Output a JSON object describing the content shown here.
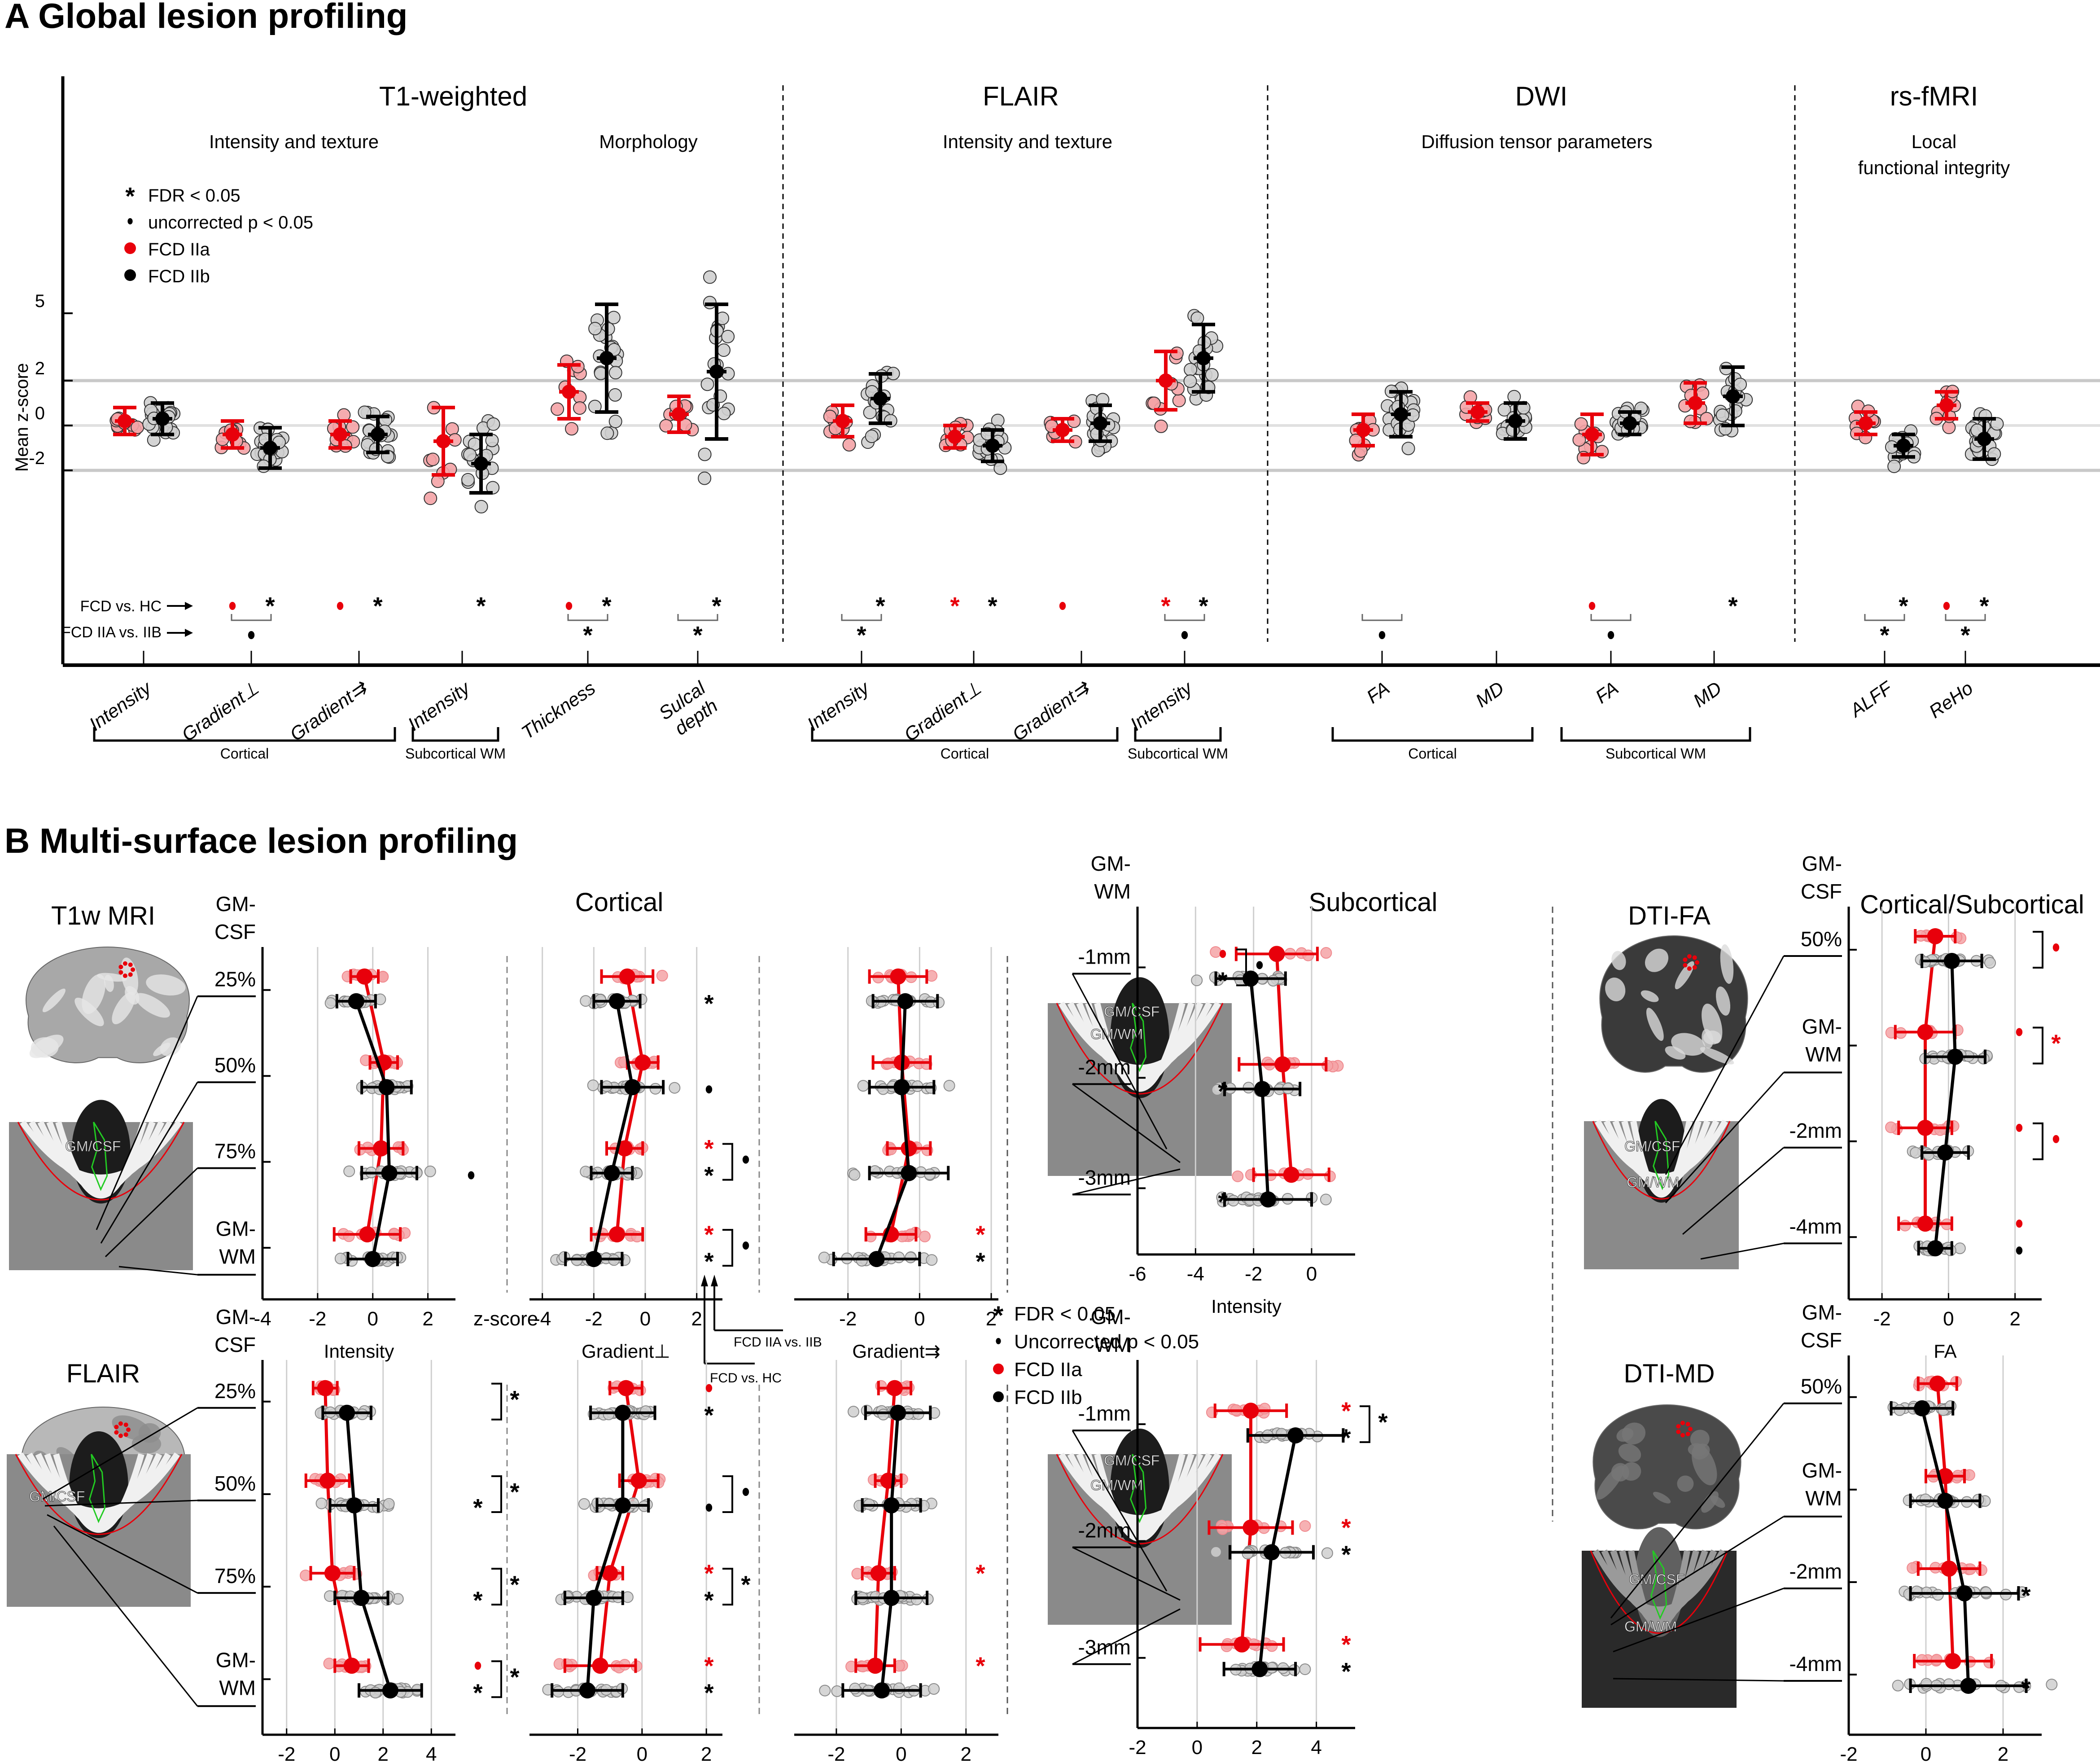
{
  "panelA": {
    "title": "A Global lesion profiling",
    "ylabel": "Mean z-score",
    "yticks": [
      5,
      2,
      0,
      -2
    ],
    "legend": [
      {
        "symbol": "asterisk",
        "label": "FDR < 0.05"
      },
      {
        "symbol": "dot",
        "label": "uncorrected p < 0.05"
      },
      {
        "symbol": "red-circle",
        "label": "FCD IIa"
      },
      {
        "symbol": "black-circle",
        "label": "FCD IIb"
      }
    ],
    "row_labels": {
      "fcd_vs_hc": "FCD vs. HC",
      "iia_vs_iib": "FCD IIA vs. IIB"
    },
    "sections": [
      {
        "title": "T1-weighted",
        "subtitles": [
          "Intensity and texture",
          "Morphology"
        ]
      },
      {
        "title": "FLAIR",
        "subtitles": [
          "Intensity and texture"
        ]
      },
      {
        "title": "DWI",
        "subtitles": [
          "Diffusion tensor parameters"
        ]
      },
      {
        "title": "rs-fMRI",
        "subtitles": [
          "Local",
          "functional integrity"
        ]
      }
    ],
    "groups": [
      {
        "label": "Cortical",
        "of": [
          0,
          2
        ]
      },
      {
        "label": "Subcortical WM",
        "of": [
          3,
          3
        ]
      },
      {
        "label": "Cortical",
        "of": [
          6,
          8
        ]
      },
      {
        "label": "Subcortical WM",
        "of": [
          9,
          9
        ]
      },
      {
        "label": "Cortical",
        "of": [
          10,
          11
        ]
      },
      {
        "label": "Subcortical WM",
        "of": [
          12,
          13
        ]
      }
    ]
  },
  "chart_data": [
    {
      "type": "scatter",
      "title": "A Global lesion profiling",
      "ylabel": "Mean z-score",
      "ylim": [
        -5.5,
        9
      ],
      "reference_lines": [
        -2,
        0,
        2
      ],
      "categories": [
        "Intensity",
        "Gradient⊥",
        "Gradient⇉",
        "Intensity",
        "Thickness",
        "Sulcal depth",
        "Intensity",
        "Gradient⊥",
        "Gradient⇉",
        "Intensity",
        "FA",
        "MD",
        "FA",
        "MD",
        "ALFF",
        "ReHo"
      ],
      "modality": [
        "T1-weighted",
        "T1-weighted",
        "T1-weighted",
        "T1-weighted",
        "T1-weighted",
        "T1-weighted",
        "FLAIR",
        "FLAIR",
        "FLAIR",
        "FLAIR",
        "DWI",
        "DWI",
        "DWI",
        "DWI",
        "rs-fMRI",
        "rs-fMRI"
      ],
      "series": [
        {
          "name": "FCD IIa",
          "color": "#e8000b",
          "mean": [
            0.2,
            -0.4,
            -0.4,
            -0.7,
            1.5,
            0.5,
            0.2,
            -0.5,
            -0.2,
            2.0,
            -0.2,
            0.6,
            -0.4,
            1.0,
            0.1,
            0.9
          ],
          "sd": [
            0.6,
            0.6,
            0.6,
            1.5,
            1.2,
            0.8,
            0.7,
            0.5,
            0.5,
            1.3,
            0.7,
            0.4,
            0.9,
            0.9,
            0.5,
            0.6
          ]
        },
        {
          "name": "FCD IIb",
          "color": "#000000",
          "mean": [
            0.3,
            -1.0,
            -0.4,
            -1.7,
            3.0,
            2.4,
            1.2,
            -0.9,
            0.1,
            3.0,
            0.5,
            0.2,
            0.1,
            1.3,
            -0.9,
            -0.6
          ],
          "sd": [
            0.7,
            0.9,
            0.8,
            1.3,
            2.4,
            3.0,
            1.1,
            0.7,
            0.8,
            1.5,
            1.0,
            0.8,
            0.5,
            1.3,
            0.5,
            0.9
          ]
        }
      ],
      "significance": {
        "fcd_vs_hc": [
          [
            "",
            ""
          ],
          [
            "dot-red",
            "asterisk"
          ],
          [
            "dot-red",
            "asterisk"
          ],
          [
            "",
            "asterisk"
          ],
          [
            "dot-red",
            "asterisk"
          ],
          [
            "",
            "asterisk"
          ],
          [
            "",
            "asterisk"
          ],
          [
            "asterisk-red",
            "asterisk"
          ],
          [
            "dot-red",
            ""
          ],
          [
            "asterisk-red",
            "asterisk"
          ],
          [
            "",
            ""
          ],
          [
            "",
            ""
          ],
          [
            "dot-red",
            ""
          ],
          [
            "",
            "asterisk"
          ],
          [
            "",
            "asterisk"
          ],
          [
            "dot-red",
            "asterisk"
          ]
        ],
        "iia_vs_iib": [
          "",
          "dot",
          "",
          "",
          "asterisk",
          "asterisk",
          "asterisk",
          "",
          "",
          "dot",
          "dot",
          "",
          "dot",
          "",
          "asterisk",
          "asterisk"
        ]
      }
    },
    {
      "type": "line",
      "title": "T1w MRI — Cortical",
      "xlabel": "Intensity",
      "xlim": [
        -4,
        3
      ],
      "xticks": [
        -4,
        -2,
        0,
        2
      ],
      "xunit": "z-score",
      "levels": [
        "25%",
        "50%",
        "75%",
        "GM-WM"
      ],
      "series": [
        {
          "name": "FCD IIa",
          "mean": [
            -0.3,
            0.4,
            0.3,
            -0.2
          ],
          "sd": [
            0.5,
            0.5,
            0.8,
            1.2
          ]
        },
        {
          "name": "FCD IIb",
          "mean": [
            -0.6,
            0.5,
            0.6,
            0.0
          ],
          "sd": [
            0.7,
            0.9,
            1.0,
            0.9
          ]
        }
      ],
      "sig_hc": [
        [
          "",
          ""
        ],
        [
          "",
          ""
        ],
        [
          "",
          "dot"
        ],
        [
          "",
          ""
        ]
      ],
      "sig_iia_iib": [
        "",
        "",
        "",
        ""
      ]
    },
    {
      "type": "line",
      "title": "T1w MRI — Cortical",
      "xlabel": "Gradient⊥",
      "xlim": [
        -4.5,
        3
      ],
      "xticks": [
        -4,
        -2,
        0,
        2
      ],
      "levels": [
        "25%",
        "50%",
        "75%",
        "GM-WM"
      ],
      "series": [
        {
          "name": "FCD IIa",
          "mean": [
            -0.7,
            -0.1,
            -0.8,
            -1.1
          ],
          "sd": [
            1.0,
            0.6,
            0.7,
            1.0
          ]
        },
        {
          "name": "FCD IIb",
          "mean": [
            -1.1,
            -0.5,
            -1.3,
            -2.0
          ],
          "sd": [
            0.9,
            1.2,
            0.8,
            1.1
          ]
        }
      ],
      "sig_hc": [
        [
          "",
          "asterisk"
        ],
        [
          "",
          "dot"
        ],
        [
          "asterisk-red",
          "asterisk"
        ],
        [
          "asterisk-red",
          "asterisk"
        ]
      ],
      "sig_iia_iib": [
        "",
        "",
        "dot",
        "dot"
      ]
    },
    {
      "type": "line",
      "title": "T1w MRI — Cortical",
      "xlabel": "Gradient⇉",
      "xlim": [
        -3.5,
        2.2
      ],
      "xticks": [
        -2,
        0,
        2
      ],
      "levels": [
        "25%",
        "50%",
        "75%",
        "GM-WM"
      ],
      "series": [
        {
          "name": "FCD IIa",
          "mean": [
            -0.6,
            -0.5,
            -0.3,
            -0.8
          ],
          "sd": [
            0.8,
            0.8,
            0.6,
            0.7
          ]
        },
        {
          "name": "FCD IIb",
          "mean": [
            -0.4,
            -0.5,
            -0.3,
            -1.2
          ],
          "sd": [
            0.9,
            0.9,
            1.1,
            1.2
          ]
        }
      ],
      "sig_hc": [
        [
          "",
          ""
        ],
        [
          "",
          ""
        ],
        [
          "",
          ""
        ],
        [
          "asterisk-red",
          "asterisk"
        ]
      ],
      "sig_iia_iib": [
        "",
        "",
        "",
        ""
      ]
    },
    {
      "type": "line",
      "title": "T1w MRI — Subcortical",
      "xlabel": "Intensity",
      "xlim": [
        -6,
        1.5
      ],
      "xticks": [
        -6,
        -4,
        -2,
        0
      ],
      "levels": [
        "-1mm",
        "-2mm",
        "-3mm"
      ],
      "series": [
        {
          "name": "FCD IIa",
          "mean": [
            -1.2,
            -1.0,
            -0.7
          ],
          "sd": [
            1.4,
            1.5,
            1.3
          ]
        },
        {
          "name": "FCD IIb",
          "mean": [
            -2.1,
            -1.7,
            -1.5
          ],
          "sd": [
            1.2,
            1.3,
            1.5
          ]
        }
      ],
      "sig_hc": [
        [
          "dot-red",
          "asterisk"
        ],
        [
          "",
          "asterisk"
        ],
        [
          "",
          "asterisk"
        ]
      ],
      "sig_iia_iib": [
        "dot",
        "",
        ""
      ]
    },
    {
      "type": "line",
      "title": "DTI-FA — Cortical/Subcortical",
      "xlabel": "FA",
      "xlim": [
        -3,
        2.8
      ],
      "xticks": [
        -2,
        0,
        2
      ],
      "levels": [
        "50%",
        "GM-WM",
        "-2mm",
        "-4mm"
      ],
      "series": [
        {
          "name": "FCD IIa",
          "mean": [
            -0.4,
            -0.7,
            -0.7,
            -0.7
          ],
          "sd": [
            0.6,
            0.9,
            0.8,
            0.8
          ]
        },
        {
          "name": "FCD IIb",
          "mean": [
            0.1,
            0.2,
            -0.1,
            -0.4
          ],
          "sd": [
            0.9,
            0.9,
            0.7,
            0.5
          ]
        }
      ],
      "sig_hc": [
        [
          "",
          ""
        ],
        [
          "dot-red",
          ""
        ],
        [
          "dot-red",
          ""
        ],
        [
          "dot-red",
          "dot"
        ]
      ],
      "sig_iia_iib": [
        "dot-red",
        "asterisk-red",
        "dot-red",
        ""
      ]
    },
    {
      "type": "line",
      "title": "FLAIR — Cortical",
      "xlabel": "Intensity",
      "xlim": [
        -3,
        5
      ],
      "xticks": [
        -2,
        0,
        2,
        4
      ],
      "levels": [
        "25%",
        "50%",
        "75%",
        "GM-WM"
      ],
      "series": [
        {
          "name": "FCD IIa",
          "mean": [
            -0.4,
            -0.3,
            -0.1,
            0.7
          ],
          "sd": [
            0.5,
            0.9,
            0.9,
            0.7
          ]
        },
        {
          "name": "FCD IIb",
          "mean": [
            0.5,
            0.8,
            1.1,
            2.3
          ],
          "sd": [
            1.0,
            1.0,
            1.1,
            1.3
          ]
        }
      ],
      "sig_hc": [
        [
          "",
          ""
        ],
        [
          "",
          "asterisk"
        ],
        [
          "",
          "asterisk"
        ],
        [
          "dot-red",
          "asterisk"
        ]
      ],
      "sig_iia_iib": [
        "asterisk",
        "asterisk",
        "asterisk",
        "asterisk"
      ]
    },
    {
      "type": "line",
      "title": "FLAIR — Cortical",
      "xlabel": "Gradient⊥",
      "xlim": [
        -3.5,
        2.5
      ],
      "xticks": [
        -2,
        0,
        2
      ],
      "levels": [
        "25%",
        "50%",
        "75%",
        "GM-WM"
      ],
      "series": [
        {
          "name": "FCD IIa",
          "mean": [
            -0.5,
            -0.1,
            -1.0,
            -1.3
          ],
          "sd": [
            0.5,
            0.6,
            0.4,
            1.1
          ]
        },
        {
          "name": "FCD IIb",
          "mean": [
            -0.6,
            -0.6,
            -1.5,
            -1.7
          ],
          "sd": [
            1.0,
            0.8,
            0.9,
            1.1
          ]
        }
      ],
      "sig_hc": [
        [
          "dot-red",
          "asterisk"
        ],
        [
          "",
          "dot"
        ],
        [
          "asterisk-red",
          "asterisk"
        ],
        [
          "asterisk-red",
          "asterisk"
        ]
      ],
      "sig_iia_iib": [
        "",
        "dot",
        "asterisk",
        ""
      ]
    },
    {
      "type": "line",
      "title": "FLAIR — Cortical",
      "xlabel": "Gradient⇉",
      "xlim": [
        -3.3,
        3
      ],
      "xticks": [
        -2,
        0,
        2
      ],
      "levels": [
        "25%",
        "50%",
        "75%",
        "GM-WM"
      ],
      "series": [
        {
          "name": "FCD IIa",
          "mean": [
            -0.2,
            -0.4,
            -0.7,
            -0.8
          ],
          "sd": [
            0.5,
            0.4,
            0.5,
            0.6
          ]
        },
        {
          "name": "FCD IIb",
          "mean": [
            -0.1,
            -0.3,
            -0.3,
            -0.6
          ],
          "sd": [
            1.0,
            0.9,
            1.1,
            1.2
          ]
        }
      ],
      "sig_hc": [
        [
          "",
          ""
        ],
        [
          "",
          ""
        ],
        [
          "asterisk-red",
          ""
        ],
        [
          "asterisk-red",
          ""
        ]
      ],
      "sig_iia_iib": [
        "",
        "",
        "",
        ""
      ]
    },
    {
      "type": "line",
      "title": "FLAIR — Subcortical",
      "xlabel": "Intensity",
      "xlim": [
        -2,
        5.3
      ],
      "xticks": [
        -2,
        0,
        2,
        4
      ],
      "levels": [
        "-1mm",
        "-2mm",
        "-3mm"
      ],
      "series": [
        {
          "name": "FCD IIa",
          "mean": [
            1.8,
            1.8,
            1.5
          ],
          "sd": [
            1.2,
            1.4,
            1.4
          ]
        },
        {
          "name": "FCD IIb",
          "mean": [
            3.3,
            2.5,
            2.1
          ],
          "sd": [
            1.6,
            1.4,
            1.2
          ]
        }
      ],
      "sig_hc": [
        [
          "asterisk-red",
          "asterisk"
        ],
        [
          "asterisk-red",
          "asterisk"
        ],
        [
          "asterisk-red",
          "asterisk"
        ]
      ],
      "sig_iia_iib": [
        "asterisk",
        "",
        ""
      ]
    },
    {
      "type": "line",
      "title": "DTI-MD — Cortical/Subcortical",
      "xlabel": "MD",
      "xlim": [
        -2,
        3
      ],
      "xticks": [
        -2,
        0,
        2
      ],
      "levels": [
        "50%",
        "GM-WM",
        "-2mm",
        "-4mm"
      ],
      "series": [
        {
          "name": "FCD IIa",
          "mean": [
            0.3,
            0.5,
            0.6,
            0.7
          ],
          "sd": [
            0.5,
            0.5,
            0.8,
            1.0
          ]
        },
        {
          "name": "FCD IIb",
          "mean": [
            -0.1,
            0.5,
            1.0,
            1.1
          ],
          "sd": [
            0.8,
            0.9,
            1.4,
            1.5
          ]
        }
      ],
      "sig_hc": [
        [
          "",
          ""
        ],
        [
          "",
          ""
        ],
        [
          "",
          "asterisk"
        ],
        [
          "",
          "asterisk"
        ]
      ],
      "sig_iia_iib": [
        "",
        "",
        "",
        ""
      ]
    }
  ],
  "panelB": {
    "title": "B Multi-surface lesion profiling",
    "rows": [
      {
        "modality": "T1w MRI",
        "cortical_title": "Cortical",
        "subcortical_title": "Subcortical",
        "cortical_levels_top": "GM-\nCSF",
        "cortical_level_labels": [
          "25%",
          "50%",
          "75%",
          "GM-\nWM"
        ],
        "subcortical_top": "GM-\nWM",
        "subcortical_level_labels": [
          "-1mm",
          "-2mm",
          "-3mm"
        ],
        "zscore_label": "z-score"
      },
      {
        "modality": "FLAIR",
        "cortical_levels_top": "GM-\nCSF",
        "cortical_level_labels": [
          "25%",
          "50%",
          "75%",
          "GM-\nWM"
        ],
        "subcortical_top": "GM-\nWM",
        "subcortical_level_labels": [
          "-1mm",
          "-2mm",
          "-3mm"
        ]
      }
    ],
    "dti": [
      {
        "modality": "DTI-FA",
        "title": "Cortical/Subcortical",
        "top": "GM-\nCSF",
        "levels": [
          "50%",
          "GM-\nWM",
          "-2mm",
          "-4mm"
        ]
      },
      {
        "modality": "DTI-MD",
        "top": "GM-\nCSF",
        "levels": [
          "50%",
          "GM-\nWM",
          "-2mm",
          "-4mm"
        ]
      }
    ],
    "inset_labels": {
      "gm_csf": "GM/CSF",
      "gm_wm": "GM/WM"
    },
    "arrow_labels": {
      "hc": "FCD vs. HC",
      "iia": "FCD IIA vs. IIB"
    },
    "legend": [
      {
        "symbol": "asterisk",
        "label": "FDR < 0.05"
      },
      {
        "symbol": "dot",
        "label": "Uncorrected p < 0.05"
      },
      {
        "symbol": "red-circle",
        "label": "FCD IIa"
      },
      {
        "symbol": "black-circle",
        "label": "FCD IIb"
      }
    ]
  },
  "colors": {
    "fcd_iia": "#e8000b",
    "fcd_iia_light": "#f4a3a6",
    "fcd_iib": "#000000",
    "hc_point": "#cfcfcf",
    "grid": "#c8c8c8"
  }
}
